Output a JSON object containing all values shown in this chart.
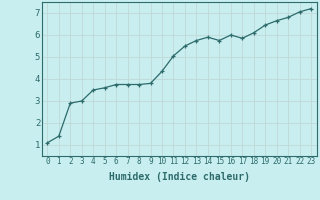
{
  "x": [
    0,
    1,
    2,
    3,
    4,
    5,
    6,
    7,
    8,
    9,
    10,
    11,
    12,
    13,
    14,
    15,
    16,
    17,
    18,
    19,
    20,
    21,
    22,
    23
  ],
  "y": [
    1.1,
    1.4,
    2.9,
    3.0,
    3.5,
    3.6,
    3.75,
    3.75,
    3.75,
    3.8,
    4.35,
    5.05,
    5.5,
    5.75,
    5.9,
    5.75,
    6.0,
    5.85,
    6.1,
    6.45,
    6.65,
    6.8,
    7.05,
    7.2
  ],
  "xlabel": "Humidex (Indice chaleur)",
  "ylim": [
    0.5,
    7.5
  ],
  "xlim": [
    -0.5,
    23.5
  ],
  "yticks": [
    1,
    2,
    3,
    4,
    5,
    6,
    7
  ],
  "xticks": [
    0,
    1,
    2,
    3,
    4,
    5,
    6,
    7,
    8,
    9,
    10,
    11,
    12,
    13,
    14,
    15,
    16,
    17,
    18,
    19,
    20,
    21,
    22,
    23
  ],
  "line_color": "#2e6b6b",
  "marker": "+",
  "bg_color": "#c8eef0",
  "grid_color": "#c0d8d8",
  "tick_color": "#2e6b6b",
  "label_color": "#2e6b6b",
  "xlabel_fontsize": 7,
  "tick_fontsize": 5.5
}
